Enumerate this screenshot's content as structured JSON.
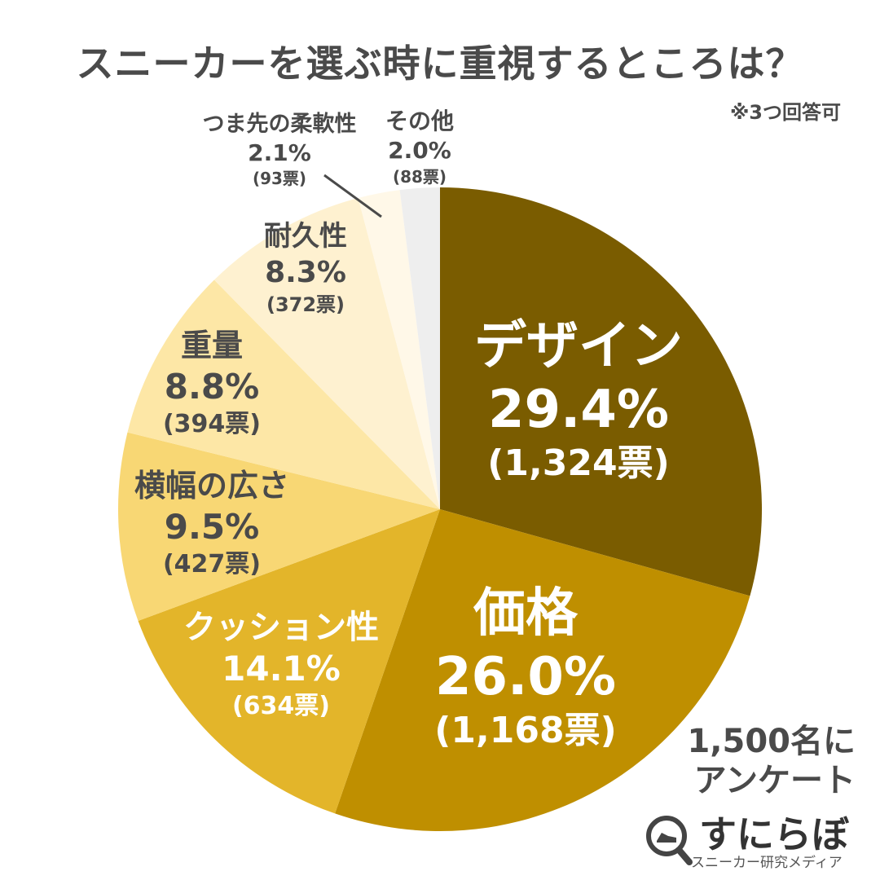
{
  "title": "スニーカーを選ぶ時に重視するところは？",
  "note": "※3つ回答可",
  "survey_note": [
    "1,500名に",
    "アンケート"
  ],
  "logo": {
    "name": "すにらぼ",
    "subtitle": "スニーカー研究メディア",
    "icon": "magnifier-sneaker-icon"
  },
  "chart_data": {
    "type": "pie",
    "title": "スニーカーを選ぶ時に重視するところは？",
    "start": "12 o'clock",
    "direction": "clockwise",
    "slices": [
      {
        "name": "デザイン",
        "pct": 29.4,
        "pct_label": "29.4%",
        "votes_label": "(1,324票)",
        "color": "#7a5c00",
        "text_color": "#ffffff"
      },
      {
        "name": "価格",
        "pct": 26.0,
        "pct_label": "26.0%",
        "votes_label": "(1,168票)",
        "color": "#bf8f00",
        "text_color": "#ffffff"
      },
      {
        "name": "クッション性",
        "pct": 14.1,
        "pct_label": "14.1%",
        "votes_label": "(634票)",
        "color": "#e3b52a",
        "text_color": "#ffffff"
      },
      {
        "name": "横幅の広さ",
        "pct": 9.5,
        "pct_label": "9.5%",
        "votes_label": "(427票)",
        "color": "#f8d774",
        "text_color": "#4a4a4a"
      },
      {
        "name": "重量",
        "pct": 8.8,
        "pct_label": "8.8%",
        "votes_label": "(394票)",
        "color": "#fde7a6",
        "text_color": "#4a4a4a"
      },
      {
        "name": "耐久性",
        "pct": 8.3,
        "pct_label": "8.3%",
        "votes_label": "(372票)",
        "color": "#fef1d0",
        "text_color": "#4a4a4a"
      },
      {
        "name": "つま先の柔軟性",
        "pct": 2.1,
        "pct_label": "2.1%",
        "votes_label": "(93票)",
        "color": "#fff8e8",
        "text_color": "#4a4a4a"
      },
      {
        "name": "その他",
        "pct": 2.0,
        "pct_label": "2.0%",
        "votes_label": "(88票)",
        "color": "#eeeeee",
        "text_color": "#4a4a4a"
      }
    ]
  }
}
